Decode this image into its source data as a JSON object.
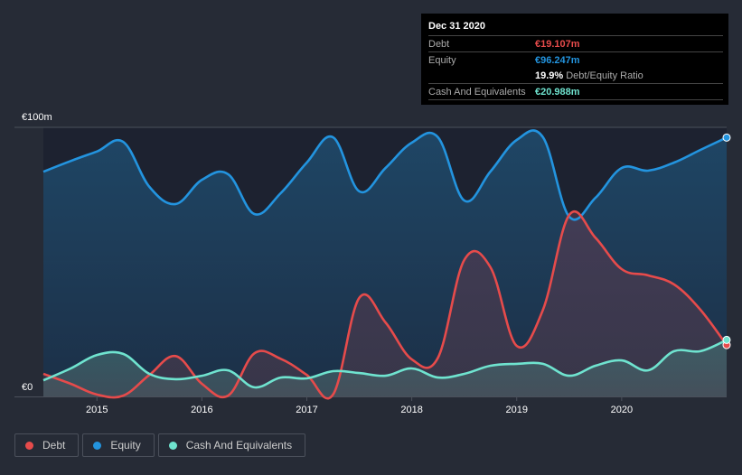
{
  "tooltip": {
    "date": "Dec 31 2020",
    "rows": [
      {
        "label": "Debt",
        "value": "€19.107m",
        "color": "#e64b4b"
      },
      {
        "label": "Equity",
        "value": "€96.247m",
        "color": "#2394df"
      },
      {
        "ratio_value": "19.9%",
        "ratio_label": "Debt/Equity Ratio"
      },
      {
        "label": "Cash And Equivalents",
        "value": "€20.988m",
        "color": "#6fe3cf"
      }
    ]
  },
  "legend": [
    {
      "label": "Debt",
      "color": "#e64b4b"
    },
    {
      "label": "Equity",
      "color": "#2394df"
    },
    {
      "label": "Cash And Equivalents",
      "color": "#6fe3cf"
    }
  ],
  "chart_data": {
    "type": "area",
    "title": "",
    "xlabel": "",
    "ylabel": "",
    "y_tick_labels": [
      "€0",
      "€100m"
    ],
    "ylim": [
      0,
      100
    ],
    "xlim": [
      2014.49,
      2021.0
    ],
    "x_tick_labels": [
      "2015",
      "2016",
      "2017",
      "2018",
      "2019",
      "2020"
    ],
    "x_ticks": [
      2015,
      2016,
      2017,
      2018,
      2019,
      2020
    ],
    "grid": true,
    "legend_position": "bottom-left",
    "x": [
      2014.49,
      2014.75,
      2015.0,
      2015.25,
      2015.5,
      2015.75,
      2016.0,
      2016.25,
      2016.5,
      2016.75,
      2017.0,
      2017.25,
      2017.5,
      2017.75,
      2018.0,
      2018.25,
      2018.5,
      2018.75,
      2019.0,
      2019.25,
      2019.5,
      2019.75,
      2020.0,
      2020.25,
      2020.5,
      2020.75,
      2021.0
    ],
    "series": [
      {
        "name": "Equity",
        "color": "#2394df",
        "values": [
          83.5,
          87.5,
          91,
          94.6,
          77.9,
          71.5,
          80.5,
          82.6,
          67.8,
          75.5,
          86.9,
          96.3,
          76.2,
          84.9,
          94.3,
          96.3,
          72.8,
          83.6,
          95.3,
          96.3,
          66.8,
          73.8,
          84.9,
          83.9,
          86.9,
          91.6,
          96.2
        ]
      },
      {
        "name": "Debt",
        "color": "#e64b4b",
        "values": [
          8.4,
          4.7,
          0.7,
          0.3,
          8,
          15,
          4.7,
          0.3,
          16,
          14,
          8,
          0.7,
          36.6,
          27.5,
          13.8,
          14.4,
          50.7,
          48,
          18.8,
          32.2,
          67.4,
          59,
          47.3,
          45,
          41.6,
          32.2,
          19.1
        ]
      },
      {
        "name": "Cash And Equivalents",
        "color": "#6fe3cf",
        "values": [
          6,
          10.4,
          15.4,
          15.8,
          8.4,
          6.4,
          7.7,
          9.7,
          3.4,
          7,
          6.7,
          9.4,
          8.7,
          7.7,
          10.4,
          7,
          8.4,
          11.4,
          12.1,
          12.1,
          7.7,
          11.4,
          13.4,
          9.7,
          16.8,
          16.8,
          21
        ]
      }
    ]
  }
}
